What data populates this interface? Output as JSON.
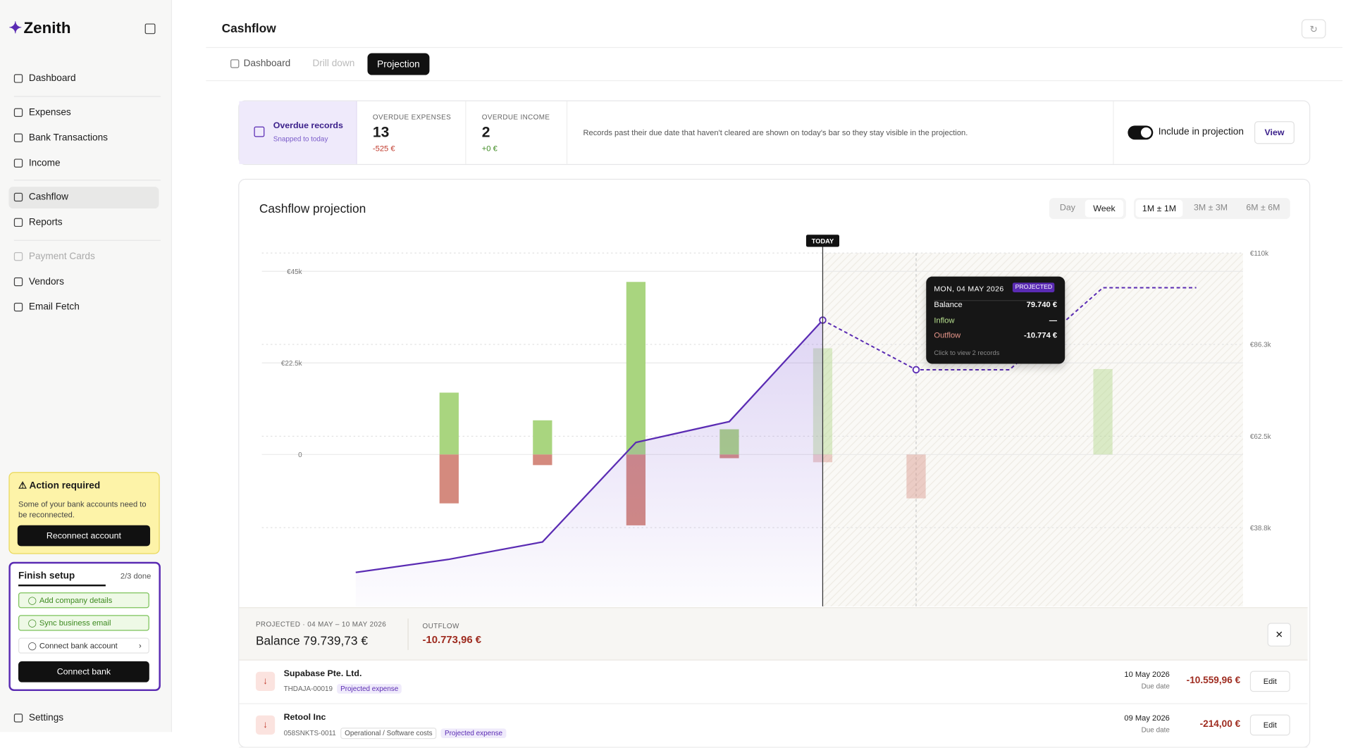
{
  "sidebar": {
    "brand": "Zenith",
    "nav": [
      "Dashboard",
      "Expenses",
      "Bank Transactions",
      "Income",
      "Cashflow",
      "Reports",
      "Payment Cards",
      "Vendors",
      "Email Fetch"
    ],
    "alert": {
      "title": "Action required",
      "text": "Some of your bank accounts need to be reconnected.",
      "button": "Reconnect account"
    },
    "setup": {
      "title": "Finish setup",
      "progress": "2/3 done",
      "items": [
        "Add company details",
        "Sync business email",
        "Connect bank account"
      ],
      "button": "Connect bank"
    },
    "settings": "Settings"
  },
  "header": {
    "title": "Cashflow",
    "tabs": [
      "Dashboard",
      "Drill down",
      "Projection"
    ]
  },
  "overdue": {
    "title": "Overdue records",
    "subtitle": "Snapped to today",
    "expenses": {
      "label": "OVERDUE EXPENSES",
      "count": 13,
      "amount": "-525 €"
    },
    "income": {
      "label": "OVERDUE INCOME",
      "count": 2,
      "amount": "+0 €"
    },
    "note": "Records past their due date that haven't cleared are shown on today's bar so they stay visible in the projection.",
    "toggle": "Include in projection",
    "button": "View"
  },
  "chart_data": {
    "type": "combo",
    "title": "Cashflow projection",
    "granularity": [
      "Day",
      "Week"
    ],
    "ranges": [
      "1M ± 1M",
      "3M ± 3M",
      "6M ± 6M"
    ],
    "today_label": "TODAY",
    "today_index": 5,
    "hover_index": 6,
    "categories": [
      null,
      null,
      null,
      null,
      null,
      null,
      null,
      null,
      null,
      null
    ],
    "series": [
      {
        "name": "Inflow",
        "color": "#a9d57f",
        "values": [
          null,
          15200,
          8400,
          42400,
          6200,
          26100,
          null,
          null,
          21000,
          null
        ]
      },
      {
        "name": "Outflow",
        "color": "#d48a7e",
        "values": [
          null,
          -12000,
          -2600,
          -17400,
          -900,
          -1900,
          -10774,
          null,
          null,
          null
        ]
      },
      {
        "name": "Balance",
        "color": "#5a2bb3",
        "axis": "y2",
        "values": [
          27200,
          30600,
          35100,
          60900,
          66300,
          92600,
          79740,
          79740,
          101000,
          101000
        ]
      }
    ],
    "ylim": [
      -37300,
      49500
    ],
    "yticks": [
      0,
      {
        "value": 22500,
        "label": "€22.5k"
      },
      {
        "value": 45000,
        "label": "€45k"
      }
    ],
    "y2lim": [
      18400,
      110000
    ],
    "y2ticks": [
      {
        "value": 38800,
        "label": "€38.8k"
      },
      {
        "value": 62500,
        "label": "€62.5k"
      },
      {
        "value": 86300,
        "label": "€86.3k"
      },
      {
        "value": 110000,
        "label": "€110k"
      }
    ],
    "tooltip": {
      "date": "MON, 04 MAY 2026",
      "badge": "PROJECTED",
      "balance": "79.740 €",
      "inflow": "—",
      "outflow": "-10.774 €",
      "hint": "Click to view 2 records"
    }
  },
  "panel": {
    "period": "PROJECTED · 04 MAY – 10 MAY 2026",
    "balance": "Balance 79.739,73 €",
    "outflow_label": "OUTFLOW",
    "outflow": "-10.773,96 €"
  },
  "records": [
    {
      "name": "Supabase Pte. Ltd.",
      "code": "THDAJA-00019",
      "tags": [
        "Projected expense"
      ],
      "date": "10 May 2026",
      "date_label": "Due date",
      "amount": "-10.559,96 €",
      "action": "Edit"
    },
    {
      "name": "Retool Inc",
      "code": "058SNKTS-0011",
      "tags": [
        "Operational / Software costs",
        "Projected expense"
      ],
      "date": "09 May 2026",
      "date_label": "Due date",
      "amount": "-214,00 €",
      "action": "Edit"
    }
  ]
}
